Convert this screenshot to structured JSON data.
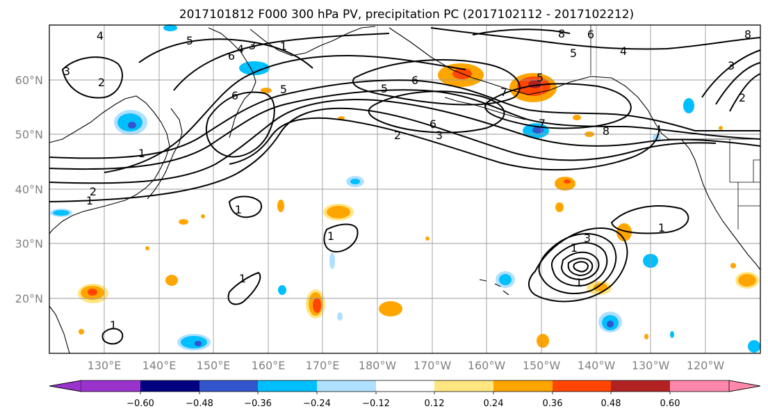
{
  "title": "2017101812 F000 300 hPa PV, precipitation PC (2017102112 - 2017102212)",
  "lat_labels": [
    "60°N",
    "50°N",
    "40°N",
    "30°N",
    "20°N"
  ],
  "lon_labels": [
    "130°E",
    "140°E",
    "150°E",
    "160°E",
    "170°E",
    "180°W",
    "170°W",
    "160°W",
    "150°W",
    "140°W",
    "130°W",
    "120°W"
  ],
  "colorbar": {
    "ticks": [
      "−0.60",
      "−0.48",
      "−0.36",
      "−0.24",
      "−0.12",
      "0.12",
      "0.24",
      "0.36",
      "0.48",
      "0.60"
    ],
    "colors": [
      "#9933cc",
      "#000080",
      "#3355cc",
      "#00bfff",
      "#b0e0ff",
      "#ffffff",
      "#ffe680",
      "#ffa500",
      "#ff4500",
      "#b22222",
      "#ff88aa"
    ]
  },
  "contour_labels": [
    "4",
    "5",
    "3",
    "1",
    "5",
    "8",
    "6",
    "6",
    "4",
    "8",
    "2",
    "3",
    "5",
    "6",
    "7",
    "6",
    "4",
    "5",
    "6",
    "2",
    "3",
    "1",
    "8",
    "3",
    "5",
    "7",
    "1",
    "2",
    "2",
    "1",
    "1",
    "1",
    "3",
    "1",
    "1",
    "1",
    "1"
  ]
}
